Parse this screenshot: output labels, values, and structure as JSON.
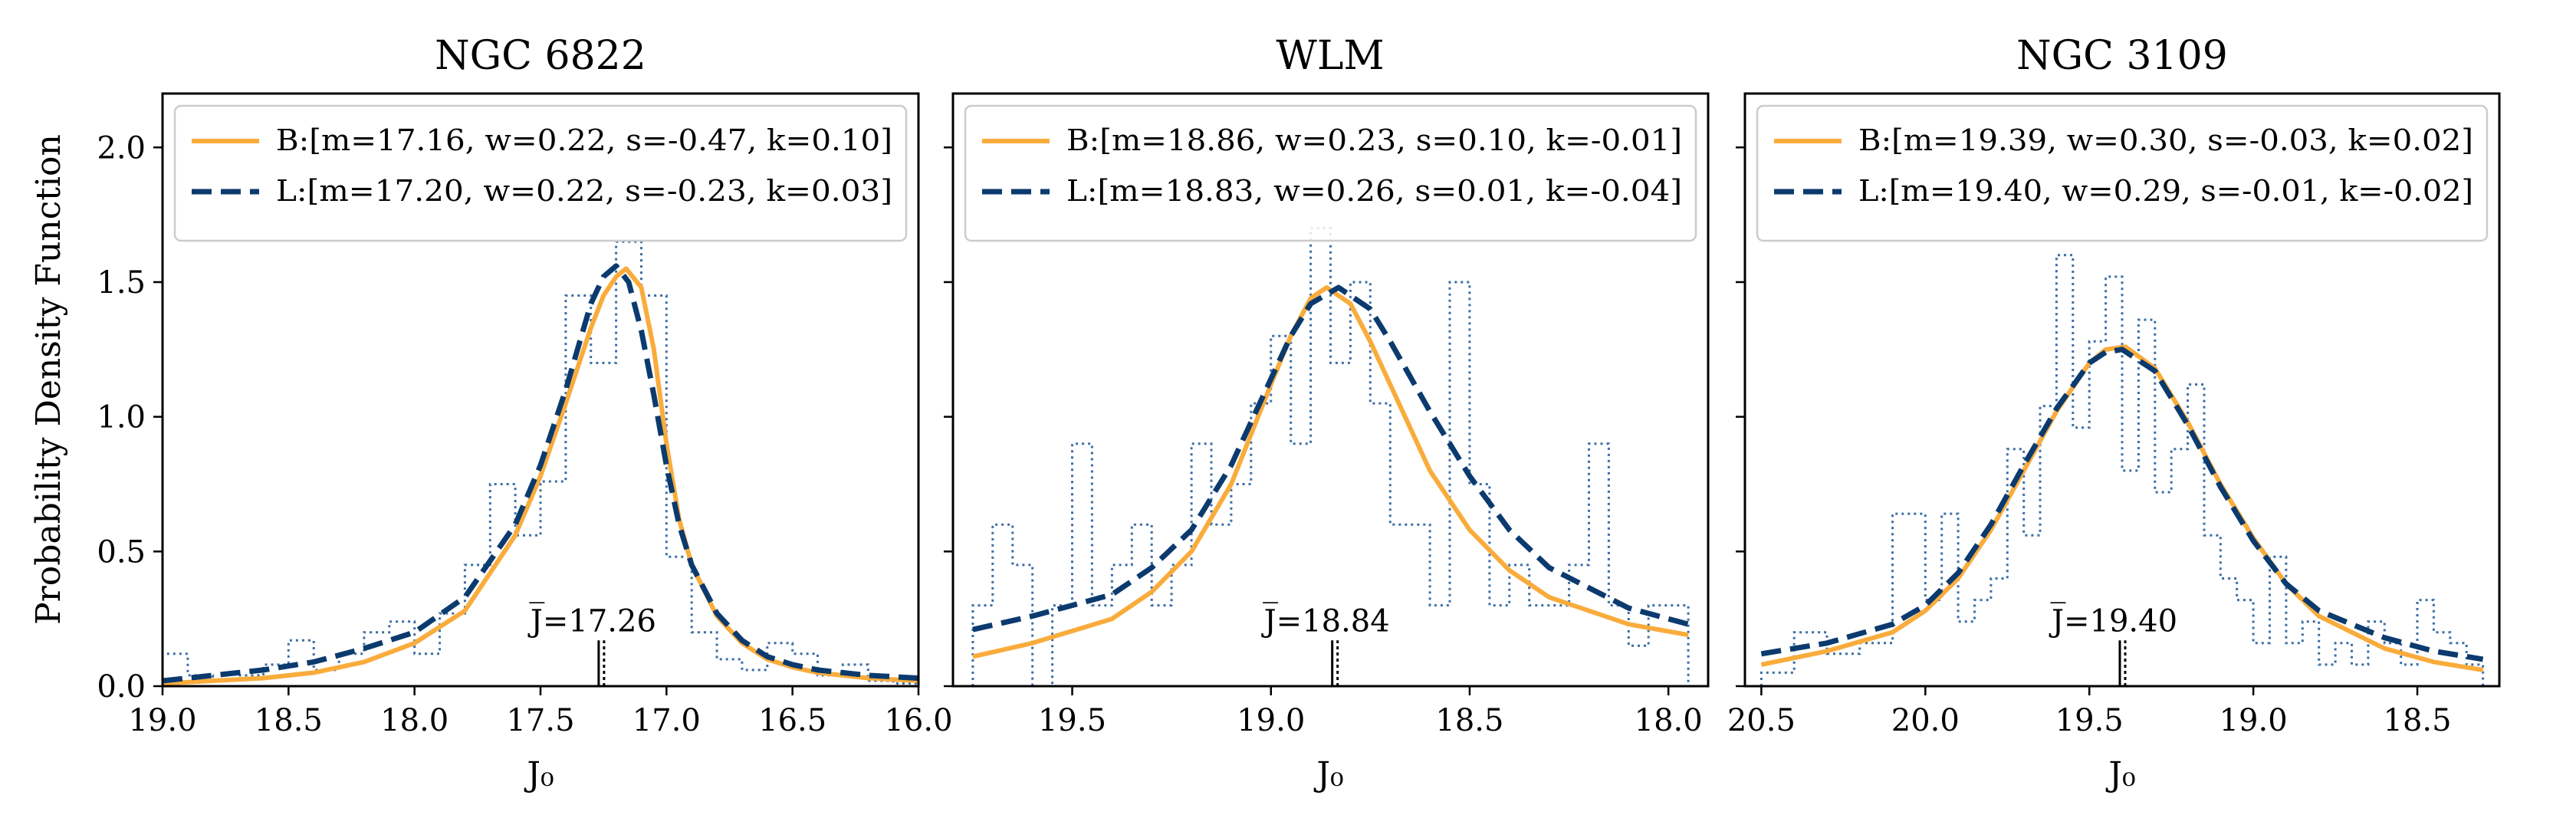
{
  "figure": {
    "ylabel": "Probability Density Function",
    "xlabel": "J₀",
    "legend_position": "top"
  },
  "chart_data": [
    {
      "type": "line",
      "title": "NGC 6822",
      "xlabel": "J₀",
      "ylabel": "Probability Density Function",
      "xlim": [
        19.0,
        16.0
      ],
      "ylim": [
        0.0,
        2.2
      ],
      "xticks": [
        19.0,
        18.5,
        18.0,
        17.5,
        17.0,
        16.5,
        16.0
      ],
      "xtick_labels": [
        "19.0",
        "18.5",
        "18.0",
        "17.5",
        "17.0",
        "16.5",
        "16.0"
      ],
      "yticks": [
        0.0,
        0.5,
        1.0,
        1.5,
        2.0
      ],
      "ytick_labels": [
        "0.0",
        "0.5",
        "1.0",
        "1.5",
        "2.0"
      ],
      "mean_label": "J̅=17.26",
      "mean_value": 17.26,
      "mean_marker_top": 0.17,
      "legend": [
        {
          "key": "B",
          "label": "B:[m=17.16, w=0.22, s=-0.47, k=0.10]"
        },
        {
          "key": "L",
          "label": "L:[m=17.20, w=0.22, s=-0.23, k=0.03]"
        }
      ],
      "series": [
        {
          "name": "B",
          "style": "solid",
          "color": "#f9ac3c",
          "peak": 1.55,
          "x": [
            19.0,
            18.8,
            18.6,
            18.4,
            18.2,
            18.0,
            17.8,
            17.6,
            17.5,
            17.4,
            17.3,
            17.25,
            17.2,
            17.16,
            17.1,
            17.05,
            17.0,
            16.95,
            16.9,
            16.8,
            16.7,
            16.6,
            16.5,
            16.4,
            16.2,
            16.0
          ],
          "y": [
            0.01,
            0.02,
            0.03,
            0.05,
            0.09,
            0.16,
            0.28,
            0.56,
            0.78,
            1.05,
            1.33,
            1.45,
            1.52,
            1.55,
            1.48,
            1.25,
            0.9,
            0.62,
            0.45,
            0.26,
            0.16,
            0.1,
            0.07,
            0.05,
            0.03,
            0.02
          ]
        },
        {
          "name": "L",
          "style": "dashed",
          "color": "#0b3a6e",
          "peak": 1.56,
          "x": [
            19.0,
            18.8,
            18.6,
            18.4,
            18.2,
            18.0,
            17.8,
            17.6,
            17.5,
            17.4,
            17.3,
            17.25,
            17.2,
            17.15,
            17.1,
            17.05,
            17.0,
            16.95,
            16.9,
            16.8,
            16.7,
            16.6,
            16.5,
            16.4,
            16.2,
            16.0
          ],
          "y": [
            0.02,
            0.04,
            0.06,
            0.09,
            0.14,
            0.2,
            0.33,
            0.6,
            0.82,
            1.1,
            1.42,
            1.52,
            1.56,
            1.5,
            1.32,
            1.08,
            0.82,
            0.6,
            0.45,
            0.27,
            0.17,
            0.11,
            0.08,
            0.06,
            0.04,
            0.03
          ]
        }
      ],
      "histogram": {
        "edges": [
          19.0,
          18.9,
          18.8,
          18.7,
          18.6,
          18.5,
          18.4,
          18.3,
          18.2,
          18.1,
          18.0,
          17.9,
          17.8,
          17.7,
          17.6,
          17.5,
          17.4,
          17.3,
          17.2,
          17.1,
          17.0,
          16.9,
          16.8,
          16.7,
          16.6,
          16.5,
          16.4,
          16.3,
          16.2,
          16.1,
          16.0
        ],
        "heights": [
          0.12,
          0.04,
          0.02,
          0.04,
          0.08,
          0.17,
          0.06,
          0.12,
          0.2,
          0.24,
          0.12,
          0.27,
          0.45,
          0.75,
          0.56,
          0.76,
          1.45,
          1.2,
          1.65,
          1.45,
          0.48,
          0.2,
          0.1,
          0.06,
          0.16,
          0.12,
          0.04,
          0.08,
          0.02,
          0.01
        ]
      }
    },
    {
      "type": "line",
      "title": "WLM",
      "xlabel": "J₀",
      "xlim": [
        19.8,
        17.9
      ],
      "ylim": [
        0.0,
        2.2
      ],
      "xticks": [
        19.5,
        19.0,
        18.5,
        18.0
      ],
      "xtick_labels": [
        "19.5",
        "19.0",
        "18.5",
        "18.0"
      ],
      "yticks": [
        0.0,
        0.5,
        1.0,
        1.5,
        2.0
      ],
      "mean_label": "J̅=18.84",
      "mean_value": 18.84,
      "mean_marker_top": 0.17,
      "legend": [
        {
          "key": "B",
          "label": "B:[m=18.86, w=0.23, s=0.10, k=-0.01]"
        },
        {
          "key": "L",
          "label": "L:[m=18.83, w=0.26, s=0.01, k=-0.04]"
        }
      ],
      "series": [
        {
          "name": "B",
          "style": "solid",
          "color": "#f9ac3c",
          "peak": 1.48,
          "x": [
            19.75,
            19.6,
            19.4,
            19.3,
            19.2,
            19.1,
            19.0,
            18.95,
            18.9,
            18.86,
            18.8,
            18.75,
            18.7,
            18.6,
            18.5,
            18.4,
            18.3,
            18.1,
            17.95
          ],
          "y": [
            0.11,
            0.16,
            0.25,
            0.35,
            0.5,
            0.75,
            1.12,
            1.3,
            1.44,
            1.48,
            1.42,
            1.28,
            1.12,
            0.8,
            0.58,
            0.43,
            0.33,
            0.23,
            0.19
          ]
        },
        {
          "name": "L",
          "style": "dashed",
          "color": "#0b3a6e",
          "peak": 1.48,
          "x": [
            19.75,
            19.6,
            19.4,
            19.3,
            19.2,
            19.1,
            19.0,
            18.95,
            18.9,
            18.83,
            18.75,
            18.7,
            18.6,
            18.5,
            18.4,
            18.3,
            18.1,
            17.95
          ],
          "y": [
            0.21,
            0.26,
            0.34,
            0.44,
            0.58,
            0.82,
            1.14,
            1.3,
            1.42,
            1.48,
            1.4,
            1.28,
            1.02,
            0.78,
            0.58,
            0.44,
            0.29,
            0.23
          ]
        }
      ],
      "histogram": {
        "edges": [
          19.75,
          19.7,
          19.65,
          19.6,
          19.55,
          19.5,
          19.45,
          19.4,
          19.35,
          19.3,
          19.25,
          19.2,
          19.15,
          19.1,
          19.05,
          19.0,
          18.95,
          18.9,
          18.85,
          18.8,
          18.75,
          18.7,
          18.65,
          18.6,
          18.55,
          18.5,
          18.45,
          18.4,
          18.35,
          18.3,
          18.25,
          18.2,
          18.15,
          18.1,
          18.05,
          18.0,
          17.95
        ],
        "heights": [
          0.3,
          0.6,
          0.45,
          0.0,
          0.3,
          0.9,
          0.3,
          0.45,
          0.6,
          0.3,
          0.45,
          0.9,
          0.6,
          0.75,
          1.05,
          1.3,
          0.9,
          1.7,
          1.2,
          1.5,
          1.05,
          0.6,
          0.6,
          0.3,
          1.5,
          0.75,
          0.3,
          0.45,
          0.3,
          0.3,
          0.45,
          0.9,
          0.3,
          0.15,
          0.3,
          0.3
        ]
      }
    },
    {
      "type": "line",
      "title": "NGC 3109",
      "xlabel": "J₀",
      "xlim": [
        20.55,
        18.25
      ],
      "ylim": [
        0.0,
        2.2
      ],
      "xticks": [
        20.5,
        20.0,
        19.5,
        19.0,
        18.5
      ],
      "xtick_labels": [
        "20.5",
        "20.0",
        "19.5",
        "19.0",
        "18.5"
      ],
      "yticks": [
        0.0,
        0.5,
        1.0,
        1.5,
        2.0
      ],
      "mean_label": "J̅=19.40",
      "mean_value": 19.4,
      "mean_marker_top": 0.17,
      "legend": [
        {
          "key": "B",
          "label": "B:[m=19.39, w=0.30, s=-0.03, k=0.02]"
        },
        {
          "key": "L",
          "label": "L:[m=19.40, w=0.29, s=-0.01, k=-0.02]"
        }
      ],
      "series": [
        {
          "name": "B",
          "style": "solid",
          "color": "#f9ac3c",
          "peak": 1.26,
          "x": [
            20.5,
            20.3,
            20.1,
            20.0,
            19.9,
            19.8,
            19.7,
            19.6,
            19.5,
            19.45,
            19.39,
            19.3,
            19.2,
            19.1,
            19.0,
            18.9,
            18.8,
            18.6,
            18.45,
            18.3
          ],
          "y": [
            0.08,
            0.13,
            0.2,
            0.28,
            0.4,
            0.58,
            0.8,
            1.02,
            1.2,
            1.25,
            1.26,
            1.18,
            0.98,
            0.75,
            0.55,
            0.38,
            0.26,
            0.14,
            0.09,
            0.06
          ]
        },
        {
          "name": "L",
          "style": "dashed",
          "color": "#0b3a6e",
          "peak": 1.25,
          "x": [
            20.5,
            20.3,
            20.1,
            20.0,
            19.9,
            19.8,
            19.7,
            19.6,
            19.5,
            19.45,
            19.4,
            19.3,
            19.2,
            19.1,
            19.0,
            18.9,
            18.8,
            18.6,
            18.45,
            18.3
          ],
          "y": [
            0.12,
            0.16,
            0.23,
            0.3,
            0.42,
            0.6,
            0.82,
            1.03,
            1.2,
            1.24,
            1.25,
            1.17,
            0.97,
            0.74,
            0.54,
            0.38,
            0.28,
            0.18,
            0.13,
            0.1
          ]
        }
      ],
      "histogram": {
        "edges": [
          20.5,
          20.4,
          20.3,
          20.2,
          20.1,
          20.0,
          19.95,
          19.9,
          19.85,
          19.8,
          19.75,
          19.7,
          19.65,
          19.6,
          19.55,
          19.5,
          19.45,
          19.4,
          19.35,
          19.3,
          19.25,
          19.2,
          19.15,
          19.1,
          19.05,
          19.0,
          18.95,
          18.9,
          18.85,
          18.8,
          18.75,
          18.7,
          18.65,
          18.6,
          18.55,
          18.5,
          18.45,
          18.4,
          18.35,
          18.3
        ],
        "heights": [
          0.05,
          0.2,
          0.12,
          0.16,
          0.64,
          0.32,
          0.64,
          0.24,
          0.32,
          0.4,
          0.88,
          0.56,
          1.04,
          1.6,
          0.96,
          1.28,
          1.52,
          0.8,
          1.36,
          0.72,
          0.88,
          1.12,
          0.56,
          0.4,
          0.32,
          0.16,
          0.48,
          0.16,
          0.24,
          0.08,
          0.16,
          0.08,
          0.24,
          0.16,
          0.08,
          0.32,
          0.2,
          0.16,
          0.08
        ]
      }
    }
  ]
}
